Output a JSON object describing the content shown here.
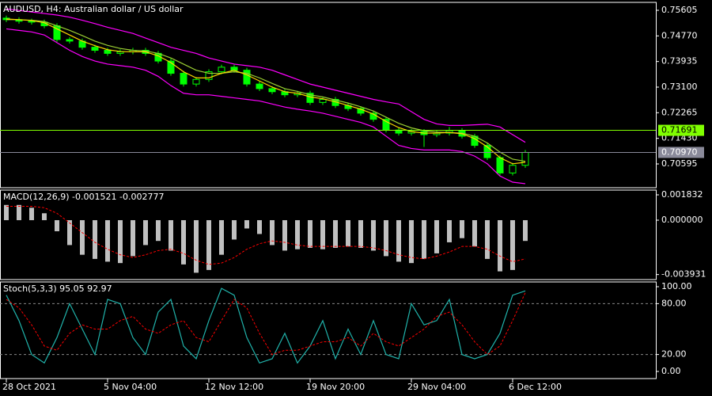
{
  "chart_data": [
    {
      "type": "candlestick",
      "title": "AUDUSD, H4:  Australian dollar / US dollar",
      "color": "#00ff00",
      "open": [
        0.7535,
        0.753,
        0.7525,
        0.7522,
        0.751,
        0.7465,
        0.746,
        0.744,
        0.743,
        0.742,
        0.7425,
        0.743,
        0.742,
        0.7395,
        0.7355,
        0.732,
        0.7335,
        0.736,
        0.7375,
        0.7365,
        0.732,
        0.7305,
        0.7295,
        0.7285,
        0.729,
        0.726,
        0.727,
        0.725,
        0.724,
        0.7225,
        0.7205,
        0.717,
        0.716,
        0.7165,
        0.7155,
        0.716,
        0.7168,
        0.715,
        0.712,
        0.708,
        0.703,
        0.7055
      ],
      "high": [
        0.7543,
        0.7538,
        0.7533,
        0.753,
        0.7518,
        0.7473,
        0.7468,
        0.7448,
        0.7438,
        0.7433,
        0.7438,
        0.7438,
        0.7428,
        0.7403,
        0.7363,
        0.7343,
        0.7368,
        0.7383,
        0.7383,
        0.7373,
        0.7328,
        0.7313,
        0.7303,
        0.7298,
        0.7298,
        0.7278,
        0.7278,
        0.7258,
        0.7248,
        0.7233,
        0.7213,
        0.7178,
        0.7173,
        0.7173,
        0.7168,
        0.718,
        0.7176,
        0.7158,
        0.7128,
        0.7088,
        0.7063,
        0.7105
      ],
      "low": [
        0.7522,
        0.7517,
        0.7514,
        0.7502,
        0.7457,
        0.7452,
        0.7432,
        0.7422,
        0.7412,
        0.7412,
        0.7417,
        0.7412,
        0.7387,
        0.7347,
        0.7312,
        0.7312,
        0.7327,
        0.7352,
        0.7357,
        0.7312,
        0.7297,
        0.7287,
        0.7277,
        0.7277,
        0.7252,
        0.7252,
        0.7242,
        0.7232,
        0.7217,
        0.7197,
        0.7162,
        0.7152,
        0.7152,
        0.7115,
        0.7147,
        0.7152,
        0.7142,
        0.7112,
        0.7072,
        0.7022,
        0.7022,
        0.7047
      ],
      "close": [
        0.753,
        0.7525,
        0.7522,
        0.751,
        0.7465,
        0.746,
        0.744,
        0.743,
        0.742,
        0.7425,
        0.743,
        0.742,
        0.7395,
        0.7355,
        0.732,
        0.7335,
        0.736,
        0.7375,
        0.7365,
        0.732,
        0.7305,
        0.7295,
        0.7285,
        0.729,
        0.726,
        0.727,
        0.725,
        0.724,
        0.7225,
        0.7205,
        0.717,
        0.716,
        0.7165,
        0.7155,
        0.716,
        0.7168,
        0.715,
        0.712,
        0.708,
        0.703,
        0.7055,
        0.7097
      ],
      "lines": [
        {
          "color": "#ff00ff",
          "values": [
            0.7565,
            0.756,
            0.7555,
            0.755,
            0.7545,
            0.7538,
            0.7528,
            0.7517,
            0.7505,
            0.7495,
            0.7485,
            0.747,
            0.7455,
            0.744,
            0.743,
            0.742,
            0.7405,
            0.7395,
            0.7385,
            0.738,
            0.7375,
            0.7365,
            0.735,
            0.7335,
            0.732,
            0.731,
            0.73,
            0.729,
            0.728,
            0.727,
            0.7262,
            0.7255,
            0.723,
            0.7205,
            0.719,
            0.7185,
            0.7185,
            0.7187,
            0.7189,
            0.718,
            0.7155,
            0.713
          ]
        },
        {
          "color": "#ff00ff",
          "values": [
            0.75,
            0.7495,
            0.749,
            0.748,
            0.7455,
            0.743,
            0.741,
            0.7395,
            0.7385,
            0.738,
            0.7375,
            0.7365,
            0.7345,
            0.7315,
            0.729,
            0.7285,
            0.7285,
            0.728,
            0.7275,
            0.727,
            0.7265,
            0.7255,
            0.7245,
            0.7238,
            0.7232,
            0.7225,
            0.7215,
            0.7205,
            0.7195,
            0.718,
            0.715,
            0.712,
            0.711,
            0.7105,
            0.7105,
            0.7105,
            0.71,
            0.7085,
            0.706,
            0.702,
            0.7,
            0.6995
          ]
        },
        {
          "color": "#9acd32",
          "values": [
            0.753,
            0.753,
            0.7528,
            0.7524,
            0.751,
            0.7495,
            0.7478,
            0.746,
            0.7446,
            0.7436,
            0.743,
            0.7428,
            0.742,
            0.7405,
            0.7385,
            0.7365,
            0.7355,
            0.7355,
            0.736,
            0.7355,
            0.734,
            0.7322,
            0.7305,
            0.7296,
            0.7285,
            0.7278,
            0.7268,
            0.7258,
            0.7246,
            0.7232,
            0.7212,
            0.7192,
            0.7177,
            0.7168,
            0.7163,
            0.7162,
            0.716,
            0.715,
            0.7128,
            0.7098,
            0.7075,
            0.7068
          ]
        },
        {
          "color": "#ffd700",
          "values": [
            0.7532,
            0.753,
            0.7527,
            0.752,
            0.75,
            0.748,
            0.746,
            0.7445,
            0.7432,
            0.7426,
            0.7425,
            0.7425,
            0.7412,
            0.739,
            0.736,
            0.734,
            0.734,
            0.7355,
            0.7365,
            0.735,
            0.733,
            0.731,
            0.7295,
            0.729,
            0.7278,
            0.7272,
            0.7262,
            0.725,
            0.7238,
            0.7222,
            0.7198,
            0.7178,
            0.7165,
            0.716,
            0.716,
            0.7162,
            0.7158,
            0.7142,
            0.7115,
            0.708,
            0.706,
            0.7065
          ]
        }
      ],
      "hlines": [
        {
          "value": 0.71691,
          "label": "0.71691",
          "color": "#80ff00",
          "text_color": "#000000"
        },
        {
          "value": 0.7097,
          "label": "0.70970",
          "color": "#8a8a9a",
          "text_color": "#ffffff"
        }
      ],
      "ylim": [
        0.6982,
        0.75863
      ],
      "yticks": [
        0.75605,
        {
          "value": 0.7477,
          "label": "0.74770"
        },
        0.73935,
        {
          "value": 0.731,
          "label": "0.73100"
        },
        0.72265,
        {
          "value": 0.7143,
          "label": "0.71430"
        },
        0.70595
      ]
    },
    {
      "type": "macd",
      "title": "MACD(12,26,9) -0.001521 -0.002777",
      "color": "#c0c0c0",
      "values": [
        0.0011,
        0.0011,
        0.0009,
        0.0005,
        -0.0008,
        -0.0018,
        -0.0025,
        -0.0028,
        -0.003,
        -0.0031,
        -0.0026,
        -0.0018,
        -0.0015,
        -0.0022,
        -0.0032,
        -0.0038,
        -0.0036,
        -0.0025,
        -0.0014,
        -0.0006,
        -0.001,
        -0.0018,
        -0.0022,
        -0.0021,
        -0.002,
        -0.0021,
        -0.002,
        -0.0019,
        -0.002,
        -0.0022,
        -0.0026,
        -0.003,
        -0.0031,
        -0.0028,
        -0.0024,
        -0.0016,
        -0.0013,
        -0.0019,
        -0.0028,
        -0.0037,
        -0.0036,
        -0.0015
      ],
      "signal": {
        "color": "#ff0000",
        "values": [
          0.001,
          0.001,
          0.001,
          0.0009,
          0.0005,
          -0.0002,
          -0.0009,
          -0.0016,
          -0.0021,
          -0.0025,
          -0.0027,
          -0.0025,
          -0.0022,
          -0.0021,
          -0.0024,
          -0.0029,
          -0.0032,
          -0.0031,
          -0.0027,
          -0.0021,
          -0.0017,
          -0.0015,
          -0.0016,
          -0.0018,
          -0.0019,
          -0.0019,
          -0.0019,
          -0.0019,
          -0.0019,
          -0.002,
          -0.0022,
          -0.0025,
          -0.0027,
          -0.0028,
          -0.0026,
          -0.0023,
          -0.0019,
          -0.0019,
          -0.0021,
          -0.0026,
          -0.003,
          -0.0028
        ]
      },
      "ylim": [
        -0.004294,
        0.002175
      ],
      "yticks": [
        0.001832,
        {
          "value": 0,
          "label": "0.000000"
        },
        -0.003931
      ]
    },
    {
      "type": "stochastic",
      "title": "Stoch(5,3,3) 95.05 92.97",
      "categories": [
        "28 Oct 2021",
        null,
        null,
        null,
        null,
        null,
        null,
        null,
        "5 Nov 04:00",
        null,
        null,
        null,
        null,
        null,
        null,
        null,
        "12 Nov 12:00",
        null,
        null,
        null,
        null,
        null,
        null,
        null,
        "19 Nov 20:00",
        null,
        null,
        null,
        null,
        null,
        null,
        null,
        "29 Nov 04:00",
        null,
        null,
        null,
        null,
        null,
        null,
        null,
        "6 Dec 12:00",
        null
      ],
      "main": {
        "color": "#20b2aa",
        "values": [
          90,
          60,
          20,
          10,
          40,
          80,
          50,
          20,
          85,
          80,
          40,
          20,
          70,
          85,
          30,
          15,
          60,
          98,
          90,
          40,
          10,
          15,
          45,
          10,
          30,
          60,
          15,
          50,
          20,
          60,
          20,
          15,
          80,
          55,
          60,
          85,
          20,
          15,
          20,
          45,
          90,
          95.05
        ]
      },
      "signal": {
        "color": "#ff0000",
        "values": [
          85,
          75,
          55,
          30,
          25,
          45,
          55,
          50,
          50,
          60,
          65,
          50,
          45,
          55,
          60,
          40,
          35,
          60,
          85,
          75,
          45,
          20,
          25,
          25,
          30,
          35,
          35,
          40,
          30,
          45,
          35,
          30,
          40,
          50,
          65,
          70,
          55,
          35,
          20,
          30,
          60,
          92.97
        ]
      },
      "levels": [
        80,
        20
      ],
      "ylim": [
        -8.4,
        105.6
      ],
      "yticks": [
        {
          "value": 100,
          "label": "100.00"
        },
        {
          "value": 80,
          "label": "80.00"
        },
        {
          "value": 20,
          "label": "20.00"
        },
        {
          "value": 0,
          "label": "0.00"
        }
      ]
    }
  ]
}
